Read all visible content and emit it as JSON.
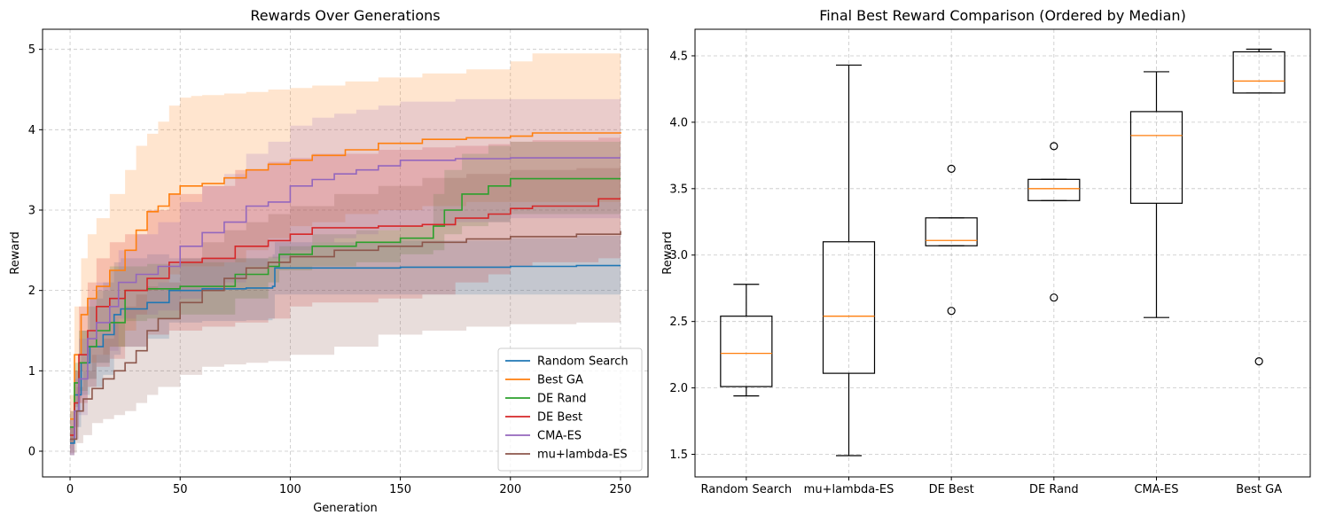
{
  "chart_data": [
    {
      "type": "line",
      "title": "Rewards Over Generations",
      "xlabel": "Generation",
      "ylabel": "Reward",
      "xlim": [
        -12.5,
        262.5
      ],
      "ylim": [
        -0.32,
        5.25
      ],
      "xticks": [
        0,
        50,
        100,
        150,
        200,
        250
      ],
      "yticks": [
        0,
        1,
        2,
        3,
        4,
        5
      ],
      "grid": true,
      "legend_position": "lower-right",
      "shaded_band": "mean ± std",
      "series": [
        {
          "name": "Random Search",
          "color": "#1f77b4",
          "x": [
            0,
            2,
            5,
            9,
            15,
            20,
            23,
            35,
            45,
            60,
            80,
            92,
            93,
            150,
            200,
            230,
            250
          ],
          "mean": [
            0.1,
            0.7,
            1.1,
            1.3,
            1.45,
            1.7,
            1.77,
            1.85,
            2.0,
            2.02,
            2.03,
            2.05,
            2.28,
            2.29,
            2.3,
            2.31,
            2.31
          ],
          "upper": [
            0.3,
            1.0,
            1.5,
            1.9,
            2.1,
            2.35,
            2.4,
            2.45,
            2.4,
            2.4,
            2.4,
            2.45,
            2.6,
            2.62,
            2.65,
            2.68,
            2.68
          ],
          "lower": [
            -0.05,
            0.3,
            0.7,
            0.8,
            0.95,
            1.2,
            1.3,
            1.4,
            1.6,
            1.62,
            1.63,
            1.65,
            1.95,
            1.95,
            1.95,
            1.95,
            1.95
          ]
        },
        {
          "name": "Best GA",
          "color": "#ff7f0e",
          "x": [
            0,
            2,
            5,
            8,
            12,
            18,
            25,
            30,
            35,
            40,
            45,
            50,
            55,
            60,
            70,
            80,
            90,
            100,
            110,
            125,
            140,
            160,
            180,
            200,
            210,
            250
          ],
          "mean": [
            0.4,
            1.2,
            1.7,
            1.9,
            2.05,
            2.25,
            2.5,
            2.75,
            2.98,
            3.05,
            3.2,
            3.3,
            3.3,
            3.33,
            3.4,
            3.5,
            3.57,
            3.62,
            3.68,
            3.75,
            3.83,
            3.88,
            3.9,
            3.92,
            3.96,
            3.97
          ],
          "upper": [
            0.7,
            1.8,
            2.4,
            2.7,
            2.9,
            3.2,
            3.5,
            3.8,
            3.95,
            4.1,
            4.3,
            4.4,
            4.42,
            4.43,
            4.45,
            4.47,
            4.5,
            4.52,
            4.55,
            4.6,
            4.65,
            4.7,
            4.75,
            4.85,
            4.95,
            4.95
          ],
          "lower": [
            0.1,
            0.6,
            1.0,
            1.1,
            1.2,
            1.3,
            1.5,
            1.7,
            2.0,
            2.1,
            2.2,
            2.3,
            2.3,
            2.3,
            2.35,
            2.5,
            2.65,
            2.8,
            2.85,
            2.95,
            3.0,
            3.05,
            3.1,
            3.1,
            3.1,
            3.1
          ]
        },
        {
          "name": "DE Rand",
          "color": "#2ca02c",
          "x": [
            0,
            2,
            4,
            8,
            12,
            18,
            25,
            35,
            50,
            75,
            90,
            95,
            110,
            130,
            150,
            165,
            170,
            178,
            190,
            200,
            250
          ],
          "mean": [
            0.3,
            0.85,
            1.1,
            1.3,
            1.5,
            1.6,
            2.0,
            2.02,
            2.05,
            2.2,
            2.3,
            2.45,
            2.55,
            2.6,
            2.65,
            2.8,
            3.0,
            3.2,
            3.3,
            3.39,
            3.39
          ],
          "upper": [
            0.5,
            1.1,
            1.5,
            1.8,
            2.0,
            2.3,
            2.3,
            2.33,
            2.35,
            2.4,
            2.42,
            2.55,
            2.7,
            2.75,
            2.8,
            3.2,
            3.5,
            3.7,
            3.8,
            3.85,
            3.85
          ],
          "lower": [
            0.1,
            0.55,
            0.75,
            0.9,
            1.1,
            1.3,
            1.62,
            1.65,
            1.7,
            1.9,
            2.1,
            2.25,
            2.3,
            2.35,
            2.45,
            2.5,
            2.7,
            2.8,
            2.85,
            2.95,
            2.95
          ]
        },
        {
          "name": "DE Best",
          "color": "#d62728",
          "x": [
            0,
            2,
            4,
            8,
            12,
            18,
            25,
            35,
            45,
            60,
            75,
            90,
            100,
            110,
            140,
            160,
            175,
            190,
            200,
            210,
            240,
            250
          ],
          "mean": [
            0.2,
            0.6,
            1.2,
            1.5,
            1.8,
            1.9,
            2.0,
            2.15,
            2.35,
            2.4,
            2.55,
            2.62,
            2.7,
            2.78,
            2.8,
            2.82,
            2.9,
            2.95,
            3.02,
            3.05,
            3.14,
            3.14
          ],
          "upper": [
            0.5,
            1.0,
            1.8,
            2.1,
            2.4,
            2.6,
            2.7,
            3.0,
            3.2,
            3.3,
            3.5,
            3.6,
            3.65,
            3.7,
            3.75,
            3.78,
            3.8,
            3.82,
            3.85,
            3.87,
            3.9,
            3.9
          ],
          "lower": [
            -0.05,
            0.3,
            0.6,
            0.8,
            1.05,
            1.15,
            1.3,
            1.45,
            1.5,
            1.55,
            1.6,
            1.65,
            1.8,
            1.85,
            1.9,
            1.95,
            2.1,
            2.2,
            2.3,
            2.35,
            2.4,
            2.4
          ]
        },
        {
          "name": "CMA-ES",
          "color": "#9467bd",
          "x": [
            0,
            2,
            4,
            8,
            12,
            18,
            22,
            30,
            40,
            50,
            60,
            70,
            80,
            90,
            100,
            110,
            120,
            130,
            140,
            150,
            175,
            200,
            250
          ],
          "mean": [
            0.15,
            0.5,
            0.9,
            1.4,
            1.6,
            1.8,
            2.1,
            2.2,
            2.3,
            2.55,
            2.72,
            2.85,
            3.05,
            3.1,
            3.3,
            3.38,
            3.45,
            3.5,
            3.55,
            3.62,
            3.64,
            3.65,
            3.65
          ],
          "upper": [
            0.4,
            0.9,
            1.4,
            1.9,
            2.1,
            2.25,
            2.5,
            2.7,
            2.85,
            3.1,
            3.3,
            3.45,
            3.7,
            3.85,
            4.05,
            4.15,
            4.2,
            4.25,
            4.3,
            4.35,
            4.38,
            4.38,
            4.38
          ],
          "lower": [
            -0.05,
            0.15,
            0.45,
            0.9,
            1.1,
            1.25,
            1.65,
            1.7,
            1.75,
            1.9,
            2.0,
            2.1,
            2.3,
            2.4,
            2.5,
            2.6,
            2.65,
            2.7,
            2.75,
            2.8,
            2.85,
            2.9,
            2.9
          ]
        },
        {
          "name": "mu+lambda-ES",
          "color": "#8c564b",
          "x": [
            0,
            3,
            6,
            10,
            15,
            20,
            25,
            30,
            35,
            40,
            50,
            60,
            70,
            80,
            90,
            100,
            120,
            140,
            160,
            180,
            200,
            230,
            250
          ],
          "mean": [
            0.15,
            0.5,
            0.65,
            0.78,
            0.9,
            1.0,
            1.1,
            1.25,
            1.5,
            1.65,
            1.85,
            2.0,
            2.15,
            2.28,
            2.35,
            2.42,
            2.5,
            2.55,
            2.6,
            2.64,
            2.67,
            2.7,
            2.74
          ],
          "upper": [
            0.3,
            0.8,
            1.0,
            1.2,
            1.4,
            1.6,
            1.8,
            1.95,
            2.05,
            2.1,
            2.4,
            2.6,
            2.75,
            2.85,
            2.95,
            3.05,
            3.2,
            3.3,
            3.4,
            3.45,
            3.5,
            3.52,
            3.55
          ],
          "lower": [
            -0.02,
            0.1,
            0.2,
            0.35,
            0.4,
            0.45,
            0.5,
            0.6,
            0.7,
            0.8,
            0.95,
            1.05,
            1.08,
            1.1,
            1.12,
            1.2,
            1.3,
            1.45,
            1.5,
            1.55,
            1.58,
            1.6,
            1.62
          ]
        }
      ]
    },
    {
      "type": "box",
      "title": "Final Best Reward Comparison (Ordered by Median)",
      "xlabel": "",
      "ylabel": "Reward",
      "ylim": [
        1.33,
        4.7
      ],
      "yticks": [
        1.5,
        2.0,
        2.5,
        3.0,
        3.5,
        4.0,
        4.5
      ],
      "ytick_labels": [
        "1.5",
        "2.0",
        "2.5",
        "3.0",
        "3.5",
        "4.0",
        "4.5"
      ],
      "grid": true,
      "box_color": "#000000",
      "median_color": "#ff7f0e",
      "categories": [
        "Random Search",
        "mu+lambda-ES",
        "DE Best",
        "DE Rand",
        "CMA-ES",
        "Best GA"
      ],
      "boxes": [
        {
          "whislo": 1.94,
          "q1": 2.01,
          "med": 2.26,
          "q3": 2.54,
          "whishi": 2.78,
          "fliers": []
        },
        {
          "whislo": 1.49,
          "q1": 2.11,
          "med": 2.54,
          "q3": 3.1,
          "whishi": 4.43,
          "fliers": []
        },
        {
          "whislo": 3.07,
          "q1": 3.07,
          "med": 3.11,
          "q3": 3.28,
          "whishi": 3.28,
          "fliers": [
            3.65,
            2.58
          ]
        },
        {
          "whislo": 3.41,
          "q1": 3.41,
          "med": 3.5,
          "q3": 3.57,
          "whishi": 3.57,
          "fliers": [
            3.82,
            2.68
          ]
        },
        {
          "whislo": 2.53,
          "q1": 3.39,
          "med": 3.9,
          "q3": 4.08,
          "whishi": 4.38,
          "fliers": []
        },
        {
          "whislo": 4.22,
          "q1": 4.22,
          "med": 4.31,
          "q3": 4.53,
          "whishi": 4.55,
          "fliers": [
            2.2
          ]
        }
      ]
    }
  ]
}
